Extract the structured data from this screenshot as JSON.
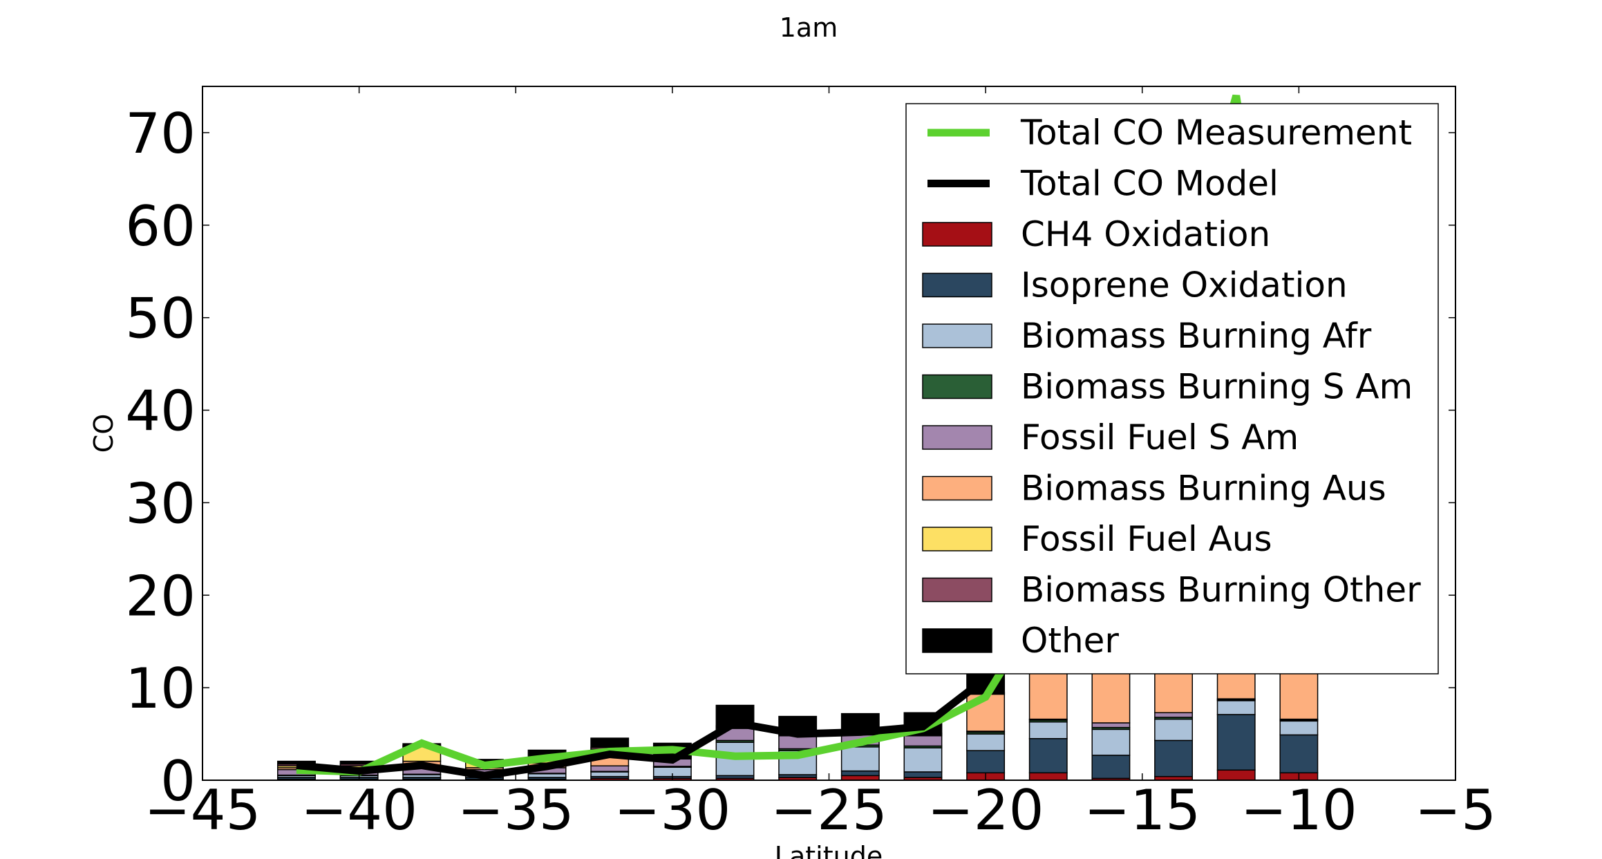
{
  "chart_data": {
    "type": "bar",
    "title": "1am",
    "xlabel": "Latitude",
    "ylabel": "CO",
    "xlim": [
      -45,
      -5
    ],
    "ylim": [
      0,
      75
    ],
    "x_ticks": [
      "−45",
      "−40",
      "−35",
      "−30",
      "−25",
      "−20",
      "−15",
      "−10",
      "−5"
    ],
    "x_tick_values": [
      -45,
      -40,
      -35,
      -30,
      -25,
      -20,
      -15,
      -10,
      -5
    ],
    "y_ticks": [
      "0",
      "10",
      "20",
      "30",
      "40",
      "50",
      "60",
      "70"
    ],
    "y_tick_values": [
      0,
      10,
      20,
      30,
      40,
      50,
      60,
      70
    ],
    "grid": false,
    "legend_position": "top-right",
    "bar_width": 1.2,
    "x": [
      -42,
      -40,
      -38,
      -36,
      -34,
      -32,
      -30,
      -28,
      -26,
      -24,
      -22,
      -20,
      -18,
      -16,
      -14,
      -12,
      -10
    ],
    "series": [
      {
        "name": "CH4 Oxidation",
        "color": "#a50f15",
        "values": [
          0.1,
          0.1,
          0.1,
          0.1,
          0.1,
          0.2,
          0.2,
          0.2,
          0.3,
          0.5,
          0.3,
          0.8,
          0.8,
          0.2,
          0.4,
          1.1,
          0.8
        ]
      },
      {
        "name": "Isoprene Oxidation",
        "color": "#2b4760",
        "values": [
          0.2,
          0.2,
          0.2,
          0.2,
          0.2,
          0.2,
          0.2,
          0.3,
          0.3,
          0.5,
          0.6,
          2.4,
          3.7,
          2.5,
          3.9,
          6.0,
          4.1
        ]
      },
      {
        "name": "Biomass Burning Afr",
        "color": "#abc1d8",
        "values": [
          0.2,
          0.2,
          0.3,
          0.3,
          0.4,
          0.5,
          1.0,
          3.6,
          2.6,
          2.6,
          2.6,
          1.8,
          1.8,
          2.8,
          2.3,
          1.5,
          1.5
        ]
      },
      {
        "name": "Biomass Burning S Am",
        "color": "#2a5f36",
        "values": [
          0.05,
          0.05,
          0.05,
          0.05,
          0.05,
          0.05,
          0.1,
          0.2,
          0.2,
          0.2,
          0.2,
          0.2,
          0.2,
          0.2,
          0.2,
          0.1,
          0.1
        ]
      },
      {
        "name": "Fossil Fuel S Am",
        "color": "#a386ae",
        "values": [
          0.6,
          0.6,
          0.7,
          0.5,
          0.6,
          0.6,
          0.8,
          1.3,
          1.4,
          1.1,
          1.1,
          0.1,
          0.1,
          0.5,
          0.5,
          0.1,
          0.1
        ]
      },
      {
        "name": "Biomass Burning Aus",
        "color": "#fdaf7e",
        "values": [
          0.2,
          0.2,
          0.7,
          0.2,
          0.5,
          1.0,
          0.1,
          0.1,
          0.1,
          0.1,
          0.1,
          4.0,
          10.0,
          10.0,
          10.0,
          10.0,
          10.0
        ]
      },
      {
        "name": "Fossil Fuel Aus",
        "color": "#fde064",
        "values": [
          0.2,
          0.2,
          1.6,
          0.6,
          0.4,
          0.8,
          0.1,
          0.1,
          0.1,
          0.1,
          0.1,
          0.1,
          0.1,
          0.1,
          0.1,
          0.1,
          0.1
        ]
      },
      {
        "name": "Biomass Burning Other",
        "color": "#8c4c62",
        "values": [
          0.2,
          0.2,
          0.1,
          0.1,
          0.2,
          0.2,
          0.1,
          0.1,
          0.1,
          0.1,
          0.1,
          0.1,
          0.1,
          0.1,
          0.1,
          0.1,
          0.1
        ]
      },
      {
        "name": "Other",
        "color": "#000000",
        "values": [
          0.3,
          0.3,
          0.2,
          0.2,
          0.8,
          1.0,
          1.4,
          2.2,
          1.8,
          2.0,
          2.2,
          2.5,
          0,
          0,
          0,
          0,
          0
        ]
      }
    ],
    "lines": [
      {
        "name": "Total CO Measurement",
        "color": "#5cd12f",
        "x": [
          -42,
          -40,
          -38,
          -36,
          -34,
          -32,
          -30,
          -28,
          -26,
          -24,
          -22,
          -20,
          -18,
          -16,
          -14,
          -12,
          -10
        ],
        "y": [
          1.1,
          0.9,
          4.0,
          1.6,
          2.4,
          3.1,
          3.3,
          2.6,
          2.7,
          4.1,
          5.6,
          9.0,
          20.0,
          35.0,
          50.0,
          74.0,
          30.0
        ]
      },
      {
        "name": "Total CO Model",
        "color": "#000000",
        "x": [
          -42,
          -40,
          -38,
          -36,
          -34,
          -32,
          -30,
          -28,
          -26,
          -24,
          -22,
          -20,
          -18,
          -16,
          -14,
          -12,
          -10
        ],
        "y": [
          1.6,
          1.0,
          1.6,
          0.5,
          1.5,
          2.8,
          2.2,
          6.2,
          5.0,
          5.2,
          5.8,
          11.0,
          20.0,
          23.0,
          25.0,
          22.0,
          18.0
        ]
      }
    ]
  }
}
